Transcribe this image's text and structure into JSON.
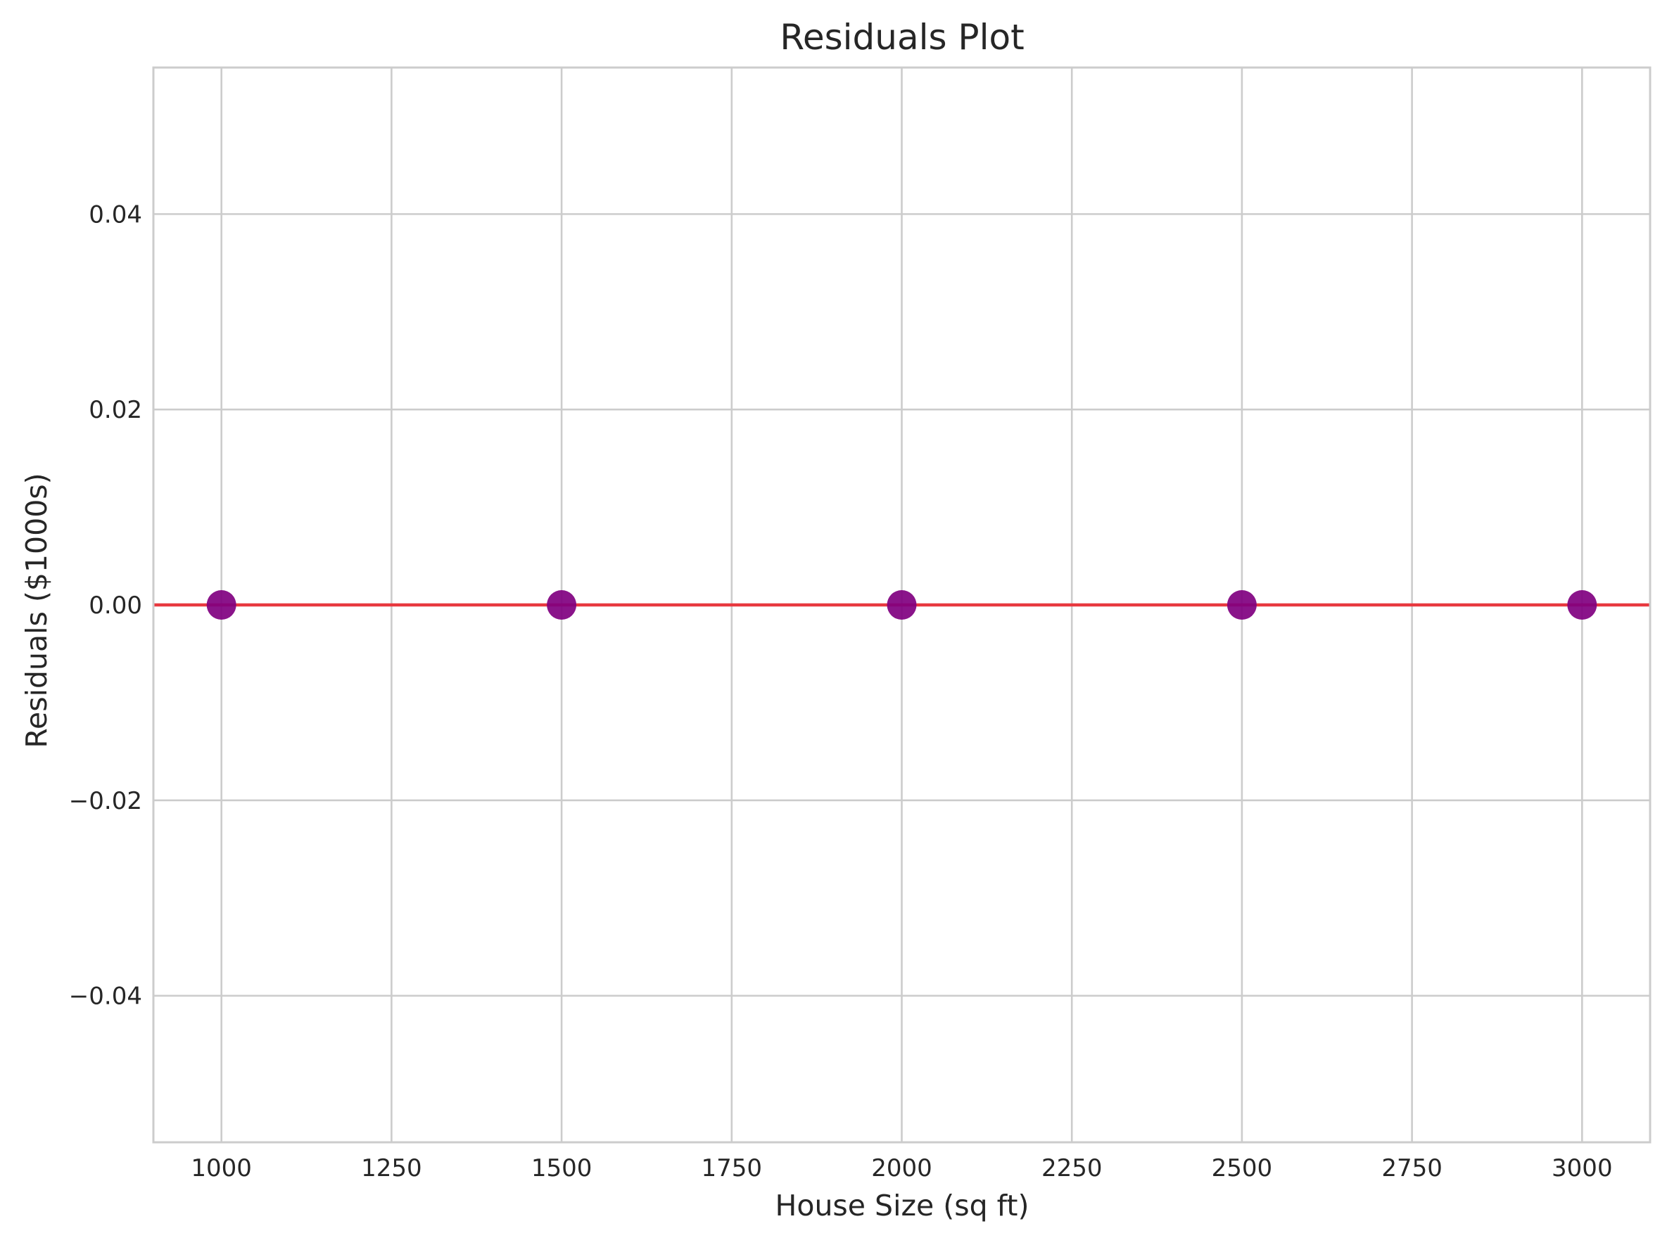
{
  "chart_data": {
    "type": "scatter",
    "title": "Residuals Plot",
    "xlabel": "House Size (sq ft)",
    "ylabel": "Residuals ($1000s)",
    "xlim": [
      900,
      3100
    ],
    "ylim": [
      -0.055,
      0.055
    ],
    "xticks": [
      1000,
      1250,
      1500,
      1750,
      2000,
      2250,
      2500,
      2750,
      3000
    ],
    "xtick_labels": [
      "1000",
      "1250",
      "1500",
      "1750",
      "2000",
      "2250",
      "2500",
      "2750",
      "3000"
    ],
    "yticks": [
      0.04,
      0.02,
      0.0,
      -0.02,
      -0.04
    ],
    "ytick_labels": [
      "0.04",
      "0.02",
      "0.00",
      "−0.02",
      "−0.04"
    ],
    "grid": true,
    "points": [
      {
        "x": 1000,
        "y": 0.0
      },
      {
        "x": 1500,
        "y": 0.0
      },
      {
        "x": 2000,
        "y": 0.0
      },
      {
        "x": 2500,
        "y": 0.0
      },
      {
        "x": 3000,
        "y": 0.0
      }
    ],
    "reference_line": {
      "y": 0.0,
      "color": "#e8393f"
    },
    "point_color": "#800080",
    "grid_color": "#cccccc",
    "spine_color": "#cccccc"
  }
}
